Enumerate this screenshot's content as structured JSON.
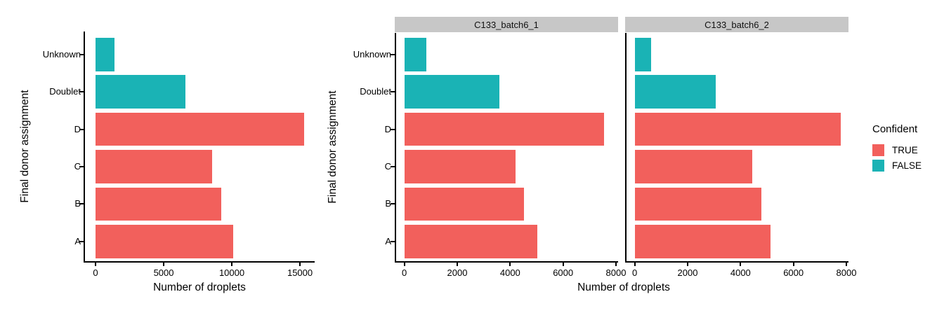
{
  "figure": {
    "ylabel": "Final donor assignment",
    "xlabel": "Number of droplets",
    "strip_bg": "#C7C7C7",
    "legend": {
      "title": "Confident",
      "items": [
        {
          "label": "TRUE",
          "color": "#F2605C"
        },
        {
          "label": "FALSE",
          "color": "#1AB3B5"
        }
      ]
    }
  },
  "chart_data": {
    "type": "bar",
    "orientation": "horizontal",
    "title": "",
    "xlabel": "Number of droplets",
    "ylabel": "Final donor assignment",
    "legend_title": "Confident",
    "legend_position": "right",
    "grid": false,
    "categories_top_to_bottom": [
      "Unknown",
      "Doublet",
      "D",
      "C",
      "B",
      "A"
    ],
    "category_confident": [
      false,
      false,
      true,
      true,
      true,
      true
    ],
    "panels": [
      {
        "name": "combined",
        "strip_label": null,
        "x_ticks": [
          0,
          5000,
          10000,
          15000
        ],
        "xlim": [
          -775,
          16080
        ],
        "values": [
          1400,
          6600,
          15300,
          8550,
          9200,
          10120
        ]
      },
      {
        "name": "C133_batch6_1",
        "strip_label": "C133_batch6_1",
        "x_ticks": [
          0,
          2000,
          4000,
          6000,
          8000
        ],
        "xlim": [
          -310,
          8080
        ],
        "values": [
          820,
          3600,
          7550,
          4200,
          4530,
          5020
        ]
      },
      {
        "name": "C133_batch6_2",
        "strip_label": "C133_batch6_2",
        "x_ticks": [
          0,
          2000,
          4000,
          6000,
          8000
        ],
        "xlim": [
          -310,
          8080
        ],
        "values": [
          620,
          3060,
          7780,
          4440,
          4780,
          5130
        ]
      }
    ]
  }
}
